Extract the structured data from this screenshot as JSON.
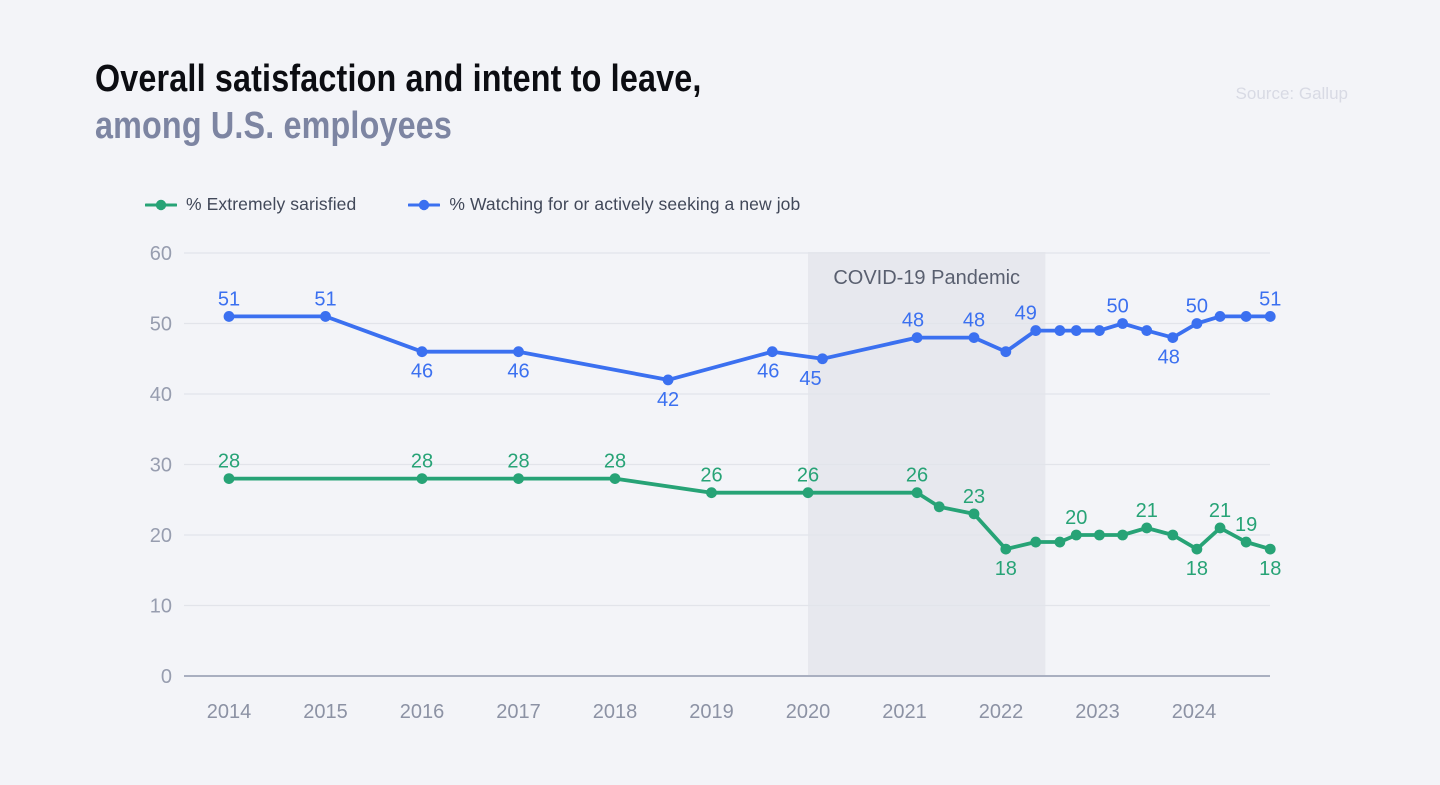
{
  "header": {
    "title_line1": "Overall satisfaction and intent to leave,",
    "title_line2": "among U.S. employees",
    "source": "Source: Gallup"
  },
  "legend": [
    {
      "label": "% Extremely sarisfied",
      "color": "#27a376"
    },
    {
      "label": "% Watching for or actively seeking a new job",
      "color": "#3b70f0"
    }
  ],
  "chart_data": {
    "type": "line",
    "title": "Overall satisfaction and intent to leave, among U.S. employees",
    "xlabel": "",
    "ylabel": "",
    "x_axis": {
      "ticks": [
        2014,
        2015,
        2016,
        2017,
        2018,
        2019,
        2020,
        2021,
        2022,
        2023,
        2024
      ],
      "range": [
        2013.45,
        2024.9
      ]
    },
    "y_axis": {
      "ticks": [
        0,
        10,
        20,
        30,
        40,
        50,
        60
      ],
      "range": [
        0,
        60
      ]
    },
    "grid": "horizontal",
    "legend_position": "top",
    "annotation_band": {
      "label": "COVID-19 Pandemic",
      "x_start": 2020.0,
      "x_end": 2022.46,
      "fill": "#e7e8ee",
      "label_color": "#595f6f"
    },
    "series": [
      {
        "name": "% Extremely sarisfied",
        "color": "#27a376",
        "points": [
          {
            "x": 2014.0,
            "y": 28,
            "label": "28",
            "label_pos": "above"
          },
          {
            "x": 2016.0,
            "y": 28,
            "label": "28",
            "label_pos": "above"
          },
          {
            "x": 2017.0,
            "y": 28,
            "label": "28",
            "label_pos": "above"
          },
          {
            "x": 2018.0,
            "y": 28,
            "label": "28",
            "label_pos": "above"
          },
          {
            "x": 2019.0,
            "y": 26,
            "label": "26",
            "label_pos": "above"
          },
          {
            "x": 2020.0,
            "y": 26,
            "label": "26",
            "label_pos": "above"
          },
          {
            "x": 2021.13,
            "y": 26,
            "label": "26",
            "label_pos": "above"
          },
          {
            "x": 2021.36,
            "y": 24
          },
          {
            "x": 2021.72,
            "y": 23,
            "label": "23",
            "label_pos": "above"
          },
          {
            "x": 2022.05,
            "y": 18,
            "label": "18",
            "label_pos": "below"
          },
          {
            "x": 2022.36,
            "y": 19
          },
          {
            "x": 2022.61,
            "y": 19
          },
          {
            "x": 2022.78,
            "y": 20,
            "label": "20",
            "label_pos": "above"
          },
          {
            "x": 2023.02,
            "y": 20
          },
          {
            "x": 2023.26,
            "y": 20
          },
          {
            "x": 2023.51,
            "y": 21,
            "label": "21",
            "label_pos": "above"
          },
          {
            "x": 2023.78,
            "y": 20
          },
          {
            "x": 2024.03,
            "y": 18,
            "label": "18",
            "label_pos": "below"
          },
          {
            "x": 2024.27,
            "y": 21,
            "label": "21",
            "label_pos": "above"
          },
          {
            "x": 2024.54,
            "y": 19,
            "label": "19",
            "label_pos": "above"
          },
          {
            "x": 2024.79,
            "y": 18,
            "label": "18",
            "label_pos": "below"
          }
        ]
      },
      {
        "name": "% Watching for or actively seeking a new job",
        "color": "#3b70f0",
        "points": [
          {
            "x": 2014.0,
            "y": 51,
            "label": "51",
            "label_pos": "above"
          },
          {
            "x": 2015.0,
            "y": 51,
            "label": "51",
            "label_pos": "above"
          },
          {
            "x": 2016.0,
            "y": 46,
            "label": "46",
            "label_pos": "below"
          },
          {
            "x": 2017.0,
            "y": 46,
            "label": "46",
            "label_pos": "below"
          },
          {
            "x": 2018.55,
            "y": 42,
            "label": "42",
            "label_pos": "below"
          },
          {
            "x": 2019.63,
            "y": 46,
            "label": "46",
            "label_pos": "below",
            "label_dx": -4
          },
          {
            "x": 2020.15,
            "y": 45,
            "label": "45",
            "label_pos": "below",
            "label_dx": -12
          },
          {
            "x": 2021.13,
            "y": 48,
            "label": "48",
            "label_pos": "above",
            "label_dx": -4
          },
          {
            "x": 2021.72,
            "y": 48,
            "label": "48",
            "label_pos": "above"
          },
          {
            "x": 2022.05,
            "y": 46
          },
          {
            "x": 2022.36,
            "y": 49,
            "label": "49",
            "label_pos": "above",
            "label_dx": -10
          },
          {
            "x": 2022.61,
            "y": 49
          },
          {
            "x": 2022.78,
            "y": 49
          },
          {
            "x": 2023.02,
            "y": 49
          },
          {
            "x": 2023.26,
            "y": 50,
            "label": "50",
            "label_pos": "above",
            "label_dx": -5
          },
          {
            "x": 2023.51,
            "y": 49
          },
          {
            "x": 2023.78,
            "y": 48,
            "label": "48",
            "label_pos": "below",
            "label_dx": -4
          },
          {
            "x": 2024.03,
            "y": 50,
            "label": "50",
            "label_pos": "above"
          },
          {
            "x": 2024.27,
            "y": 51
          },
          {
            "x": 2024.54,
            "y": 51
          },
          {
            "x": 2024.79,
            "y": 51,
            "label": "51",
            "label_pos": "above"
          }
        ]
      }
    ]
  }
}
